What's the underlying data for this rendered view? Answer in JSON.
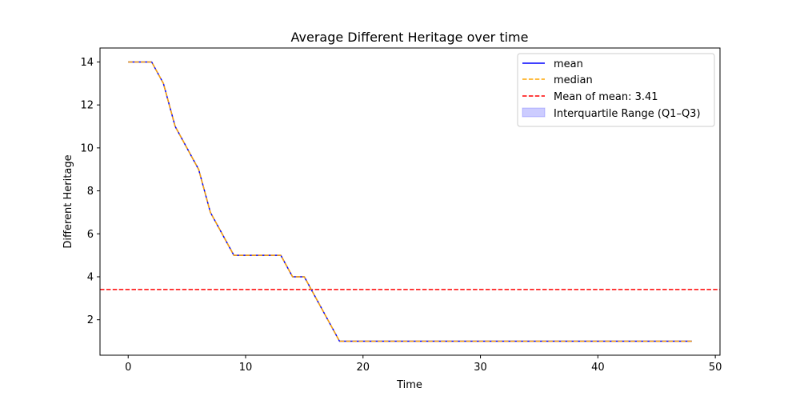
{
  "chart_data": {
    "type": "line",
    "title": "Average Different Heritage over time",
    "xlabel": "Time",
    "ylabel": "Different Heritage",
    "xlim": [
      -2.4,
      50.4
    ],
    "ylim": [
      0.35,
      14.65
    ],
    "xticks": [
      0,
      10,
      20,
      30,
      40,
      50
    ],
    "yticks": [
      2,
      4,
      6,
      8,
      10,
      12,
      14
    ],
    "grid": false,
    "legend_position": "top-right",
    "x": [
      0,
      1,
      2,
      3,
      4,
      5,
      6,
      7,
      8,
      9,
      10,
      11,
      12,
      13,
      14,
      15,
      16,
      17,
      18,
      19,
      20,
      21,
      22,
      23,
      24,
      25,
      26,
      27,
      28,
      29,
      30,
      31,
      32,
      33,
      34,
      35,
      36,
      37,
      38,
      39,
      40,
      41,
      42,
      43,
      44,
      45,
      46,
      47,
      48
    ],
    "series": [
      {
        "name": "mean",
        "color": "#0000ff",
        "style": "solid",
        "values": [
          14,
          14,
          14,
          13,
          11,
          10,
          9,
          7,
          6,
          5,
          5,
          5,
          5,
          5,
          4,
          4,
          3,
          2,
          1,
          1,
          1,
          1,
          1,
          1,
          1,
          1,
          1,
          1,
          1,
          1,
          1,
          1,
          1,
          1,
          1,
          1,
          1,
          1,
          1,
          1,
          1,
          1,
          1,
          1,
          1,
          1,
          1,
          1,
          1
        ]
      },
      {
        "name": "median",
        "color": "#ffa500",
        "style": "dashed",
        "values": [
          14,
          14,
          14,
          13,
          11,
          10,
          9,
          7,
          6,
          5,
          5,
          5,
          5,
          5,
          4,
          4,
          3,
          2,
          1,
          1,
          1,
          1,
          1,
          1,
          1,
          1,
          1,
          1,
          1,
          1,
          1,
          1,
          1,
          1,
          1,
          1,
          1,
          1,
          1,
          1,
          1,
          1,
          1,
          1,
          1,
          1,
          1,
          1,
          1
        ]
      }
    ],
    "reference_line": {
      "name": "Mean of mean: 3.41",
      "value": 3.41,
      "color": "#ff0000",
      "style": "dashed"
    },
    "band": {
      "name": "Interquartile Range (Q1–Q3)",
      "color": "#0000ff",
      "opacity": 0.2
    }
  }
}
